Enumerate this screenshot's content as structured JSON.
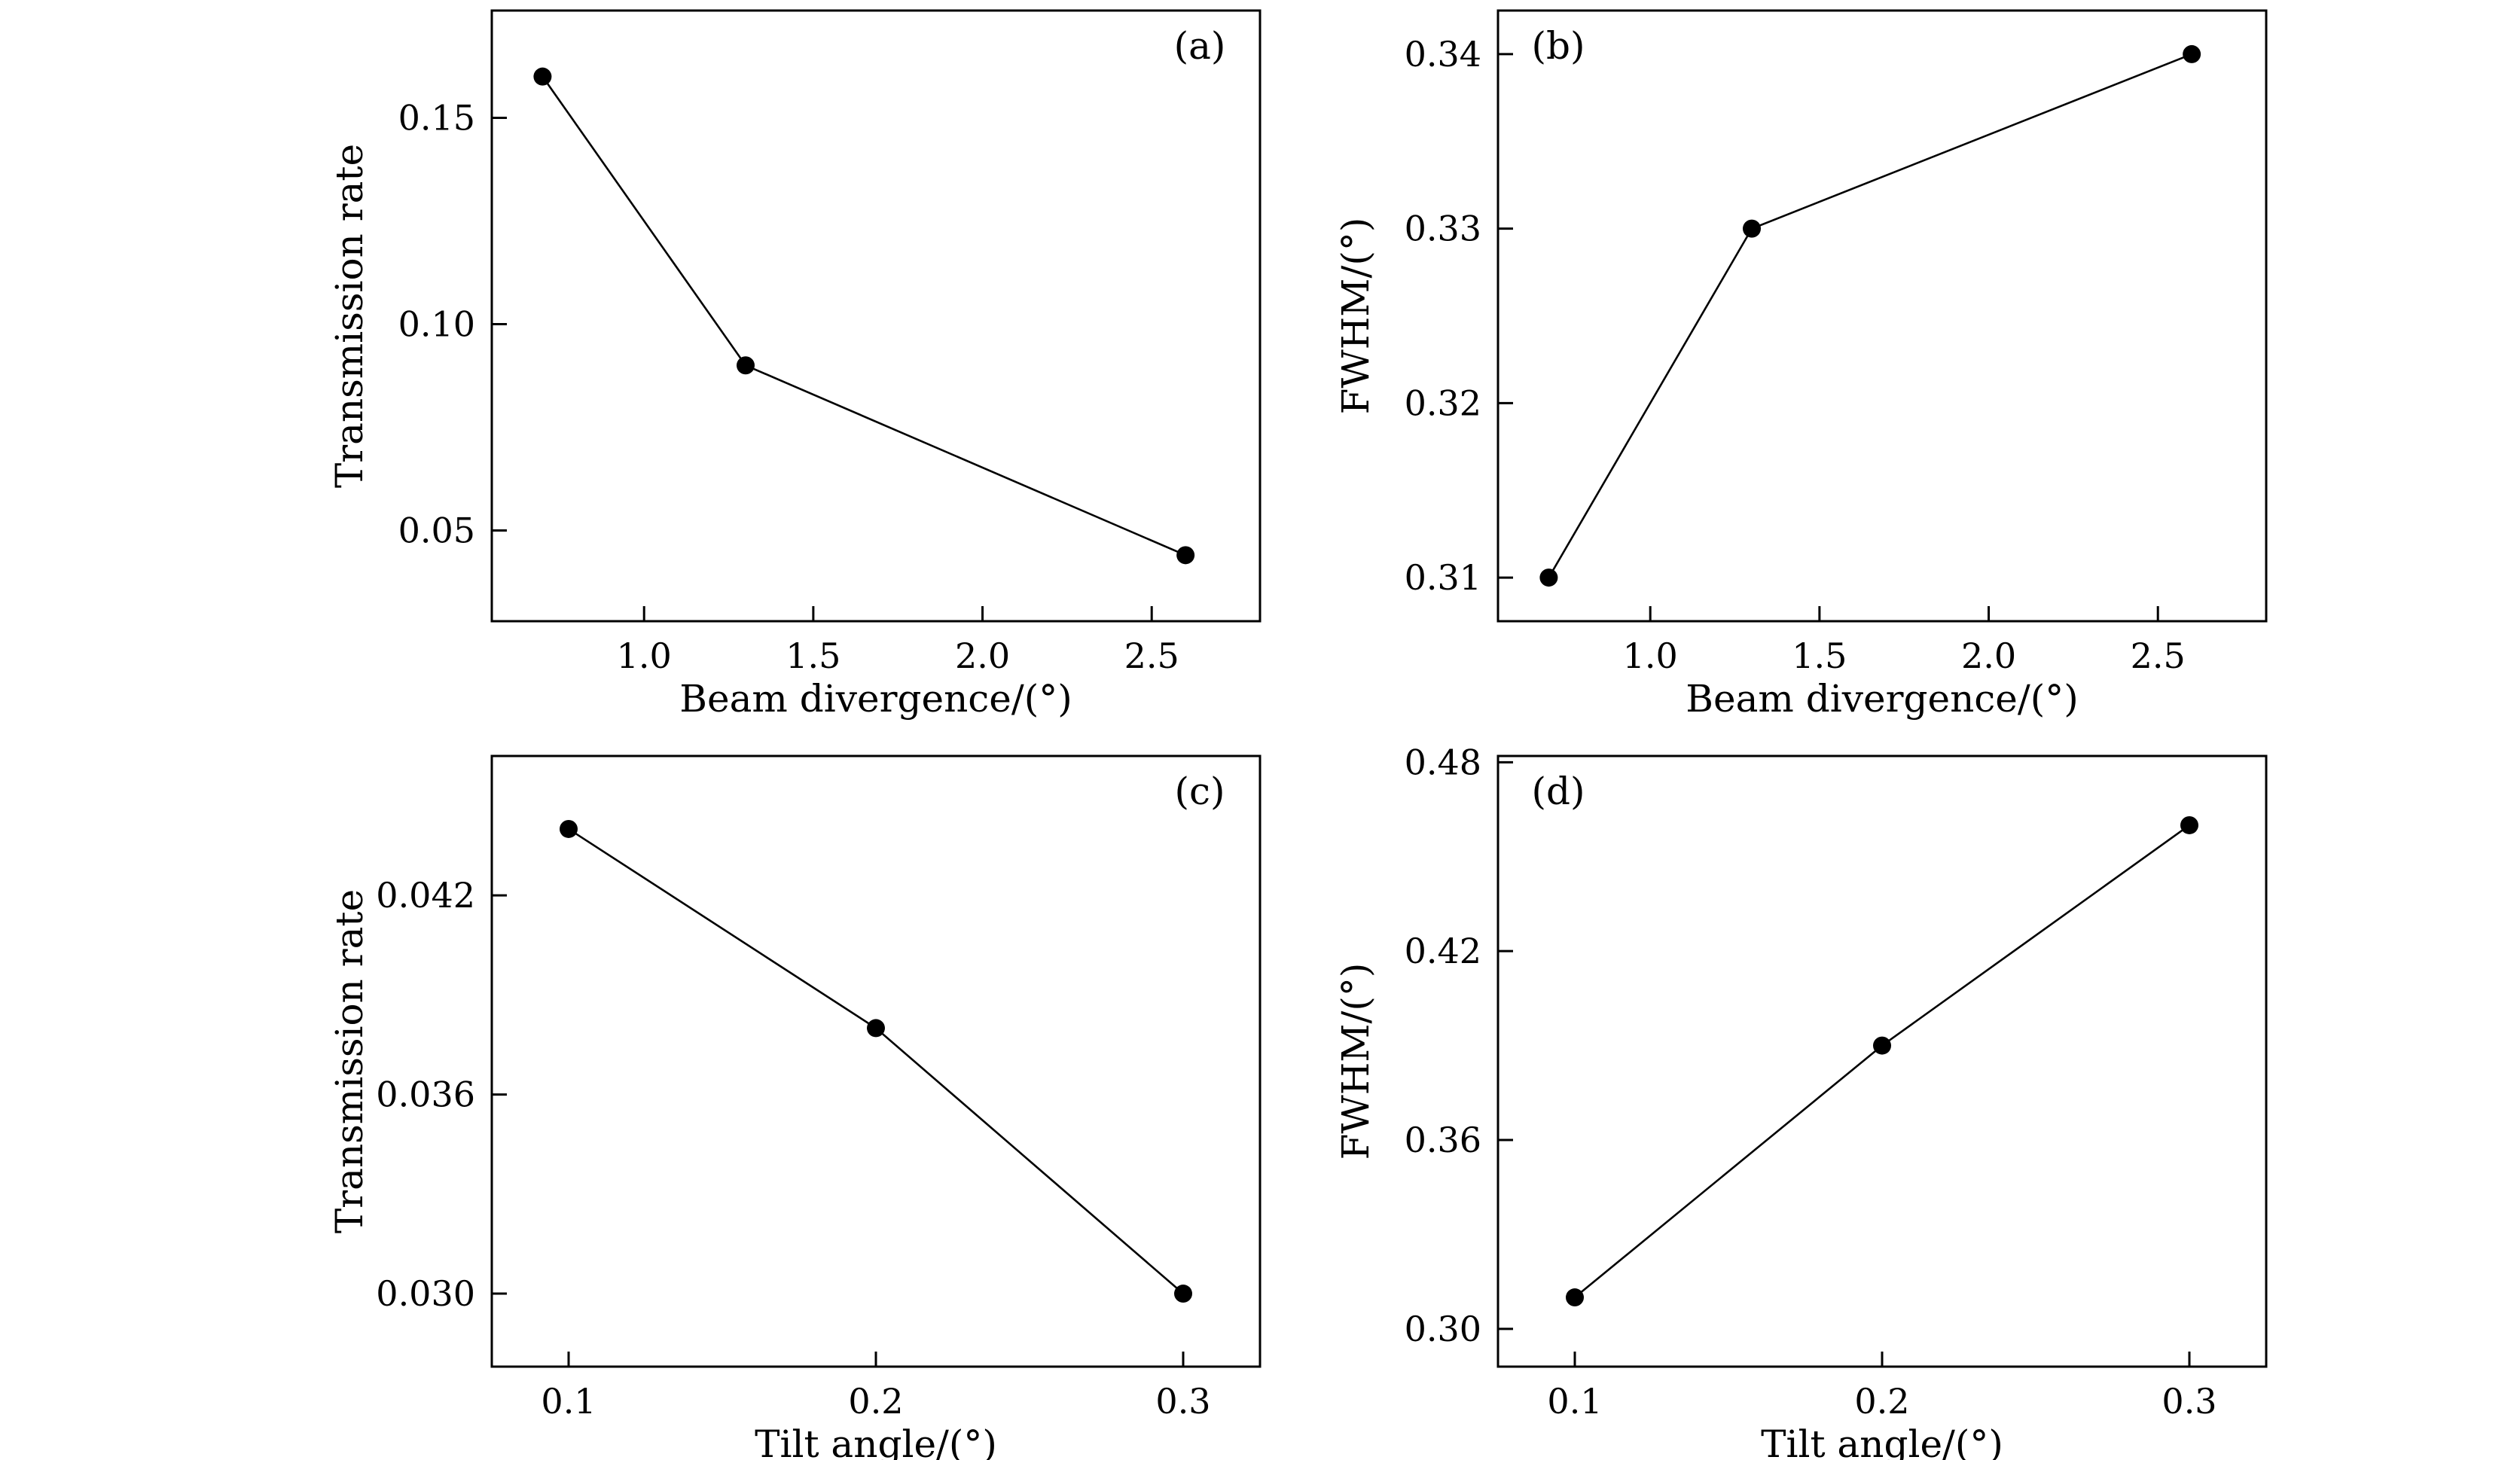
{
  "figure": {
    "background": "#ffffff",
    "ink_color": "#000000"
  },
  "chart_data": [
    {
      "id": "a",
      "type": "line",
      "panel_label": "(a)",
      "panel_label_pos": "top-right",
      "xlabel": "Beam divergence/(°)",
      "ylabel": "Transmission rate",
      "xlim": [
        0.55,
        2.82
      ],
      "ylim": [
        0.028,
        0.176
      ],
      "xticks": [
        "1.0",
        "1.5",
        "2.0",
        "2.5"
      ],
      "yticks": [
        "0.05",
        "0.10",
        "0.15"
      ],
      "x": [
        0.7,
        1.3,
        2.6
      ],
      "y": [
        0.16,
        0.09,
        0.044
      ],
      "grid": false,
      "legend": "none",
      "marker": "circle"
    },
    {
      "id": "b",
      "type": "line",
      "panel_label": "(b)",
      "panel_label_pos": "top-left",
      "xlabel": "Beam divergence/(°)",
      "ylabel": "FWHM/(°)",
      "xlim": [
        0.55,
        2.82
      ],
      "ylim": [
        0.3075,
        0.3425
      ],
      "xticks": [
        "1.0",
        "1.5",
        "2.0",
        "2.5"
      ],
      "yticks": [
        "0.31",
        "0.32",
        "0.33",
        "0.34"
      ],
      "x": [
        0.7,
        1.3,
        2.6
      ],
      "y": [
        0.31,
        0.33,
        0.34
      ],
      "grid": false,
      "legend": "none",
      "marker": "circle"
    },
    {
      "id": "c",
      "type": "line",
      "panel_label": "(c)",
      "panel_label_pos": "top-right",
      "xlabel": "Tilt angle/(°)",
      "ylabel": "Transmission rate",
      "xlim": [
        0.075,
        0.325
      ],
      "ylim": [
        0.0278,
        0.0462
      ],
      "xticks": [
        "0.1",
        "0.2",
        "0.3"
      ],
      "yticks": [
        "0.030",
        "0.036",
        "0.042"
      ],
      "x": [
        0.1,
        0.2,
        0.3
      ],
      "y": [
        0.044,
        0.038,
        0.03
      ],
      "grid": false,
      "legend": "none",
      "marker": "circle"
    },
    {
      "id": "d",
      "type": "line",
      "panel_label": "(d)",
      "panel_label_pos": "top-left",
      "xlabel": "Tilt angle/(°)",
      "ylabel": "FWHM/(°)",
      "xlim": [
        0.075,
        0.325
      ],
      "ylim": [
        0.288,
        0.482
      ],
      "xticks": [
        "0.1",
        "0.2",
        "0.3"
      ],
      "yticks": [
        "0.30",
        "0.36",
        "0.42",
        "0.48"
      ],
      "x": [
        0.1,
        0.2,
        0.3
      ],
      "y": [
        0.31,
        0.39,
        0.46
      ],
      "grid": false,
      "legend": "none",
      "marker": "circle"
    }
  ]
}
